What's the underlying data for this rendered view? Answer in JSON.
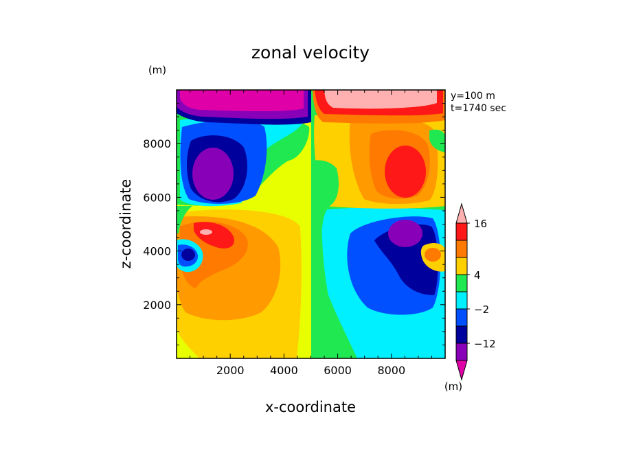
{
  "chart_data": {
    "type": "heatmap",
    "title": "zonal velocity",
    "xlabel": "x-coordinate",
    "ylabel": "z-coordinate",
    "y_unit": "(m)",
    "colorbar_unit": "(m)",
    "annotation_lines": [
      "y=100 m",
      "t=1740 sec"
    ],
    "xlim": [
      0,
      10000
    ],
    "ylim": [
      0,
      10000
    ],
    "xticks": [
      2000,
      4000,
      6000,
      8000
    ],
    "yticks": [
      2000,
      4000,
      6000,
      8000
    ],
    "colorbar": {
      "levels": [
        -16,
        -12,
        -8,
        -2,
        2,
        4,
        8,
        12,
        16
      ],
      "tick_labels": [
        "16",
        "4",
        "−2",
        "−12"
      ],
      "tick_values": [
        16,
        4,
        -2,
        -12
      ],
      "colors": [
        "#e000a8",
        "#8800b8",
        "#00009c",
        "#0050ff",
        "#00f0ff",
        "#20e850",
        "#ffd000",
        "#ff7a00",
        "#ff1818",
        "#ffb0b0"
      ],
      "extend": "both"
    },
    "features": [
      {
        "x": 1700,
        "z": 6700,
        "value": -12,
        "kind": "minimum"
      },
      {
        "x": 8300,
        "z": 6900,
        "value": 12,
        "kind": "maximum"
      },
      {
        "x": 1200,
        "z": 4400,
        "value": 16,
        "kind": "maximum"
      },
      {
        "x": 8800,
        "z": 4400,
        "value": -12,
        "kind": "minimum"
      },
      {
        "x": 2500,
        "z": 9800,
        "value": -16,
        "kind": "minimum"
      },
      {
        "x": 7500,
        "z": 9800,
        "value": 16,
        "kind": "maximum"
      },
      {
        "x": 700,
        "z": 3900,
        "value": -12,
        "kind": "minimum"
      },
      {
        "x": 9300,
        "z": 3900,
        "value": 8,
        "kind": "maximum"
      }
    ]
  }
}
